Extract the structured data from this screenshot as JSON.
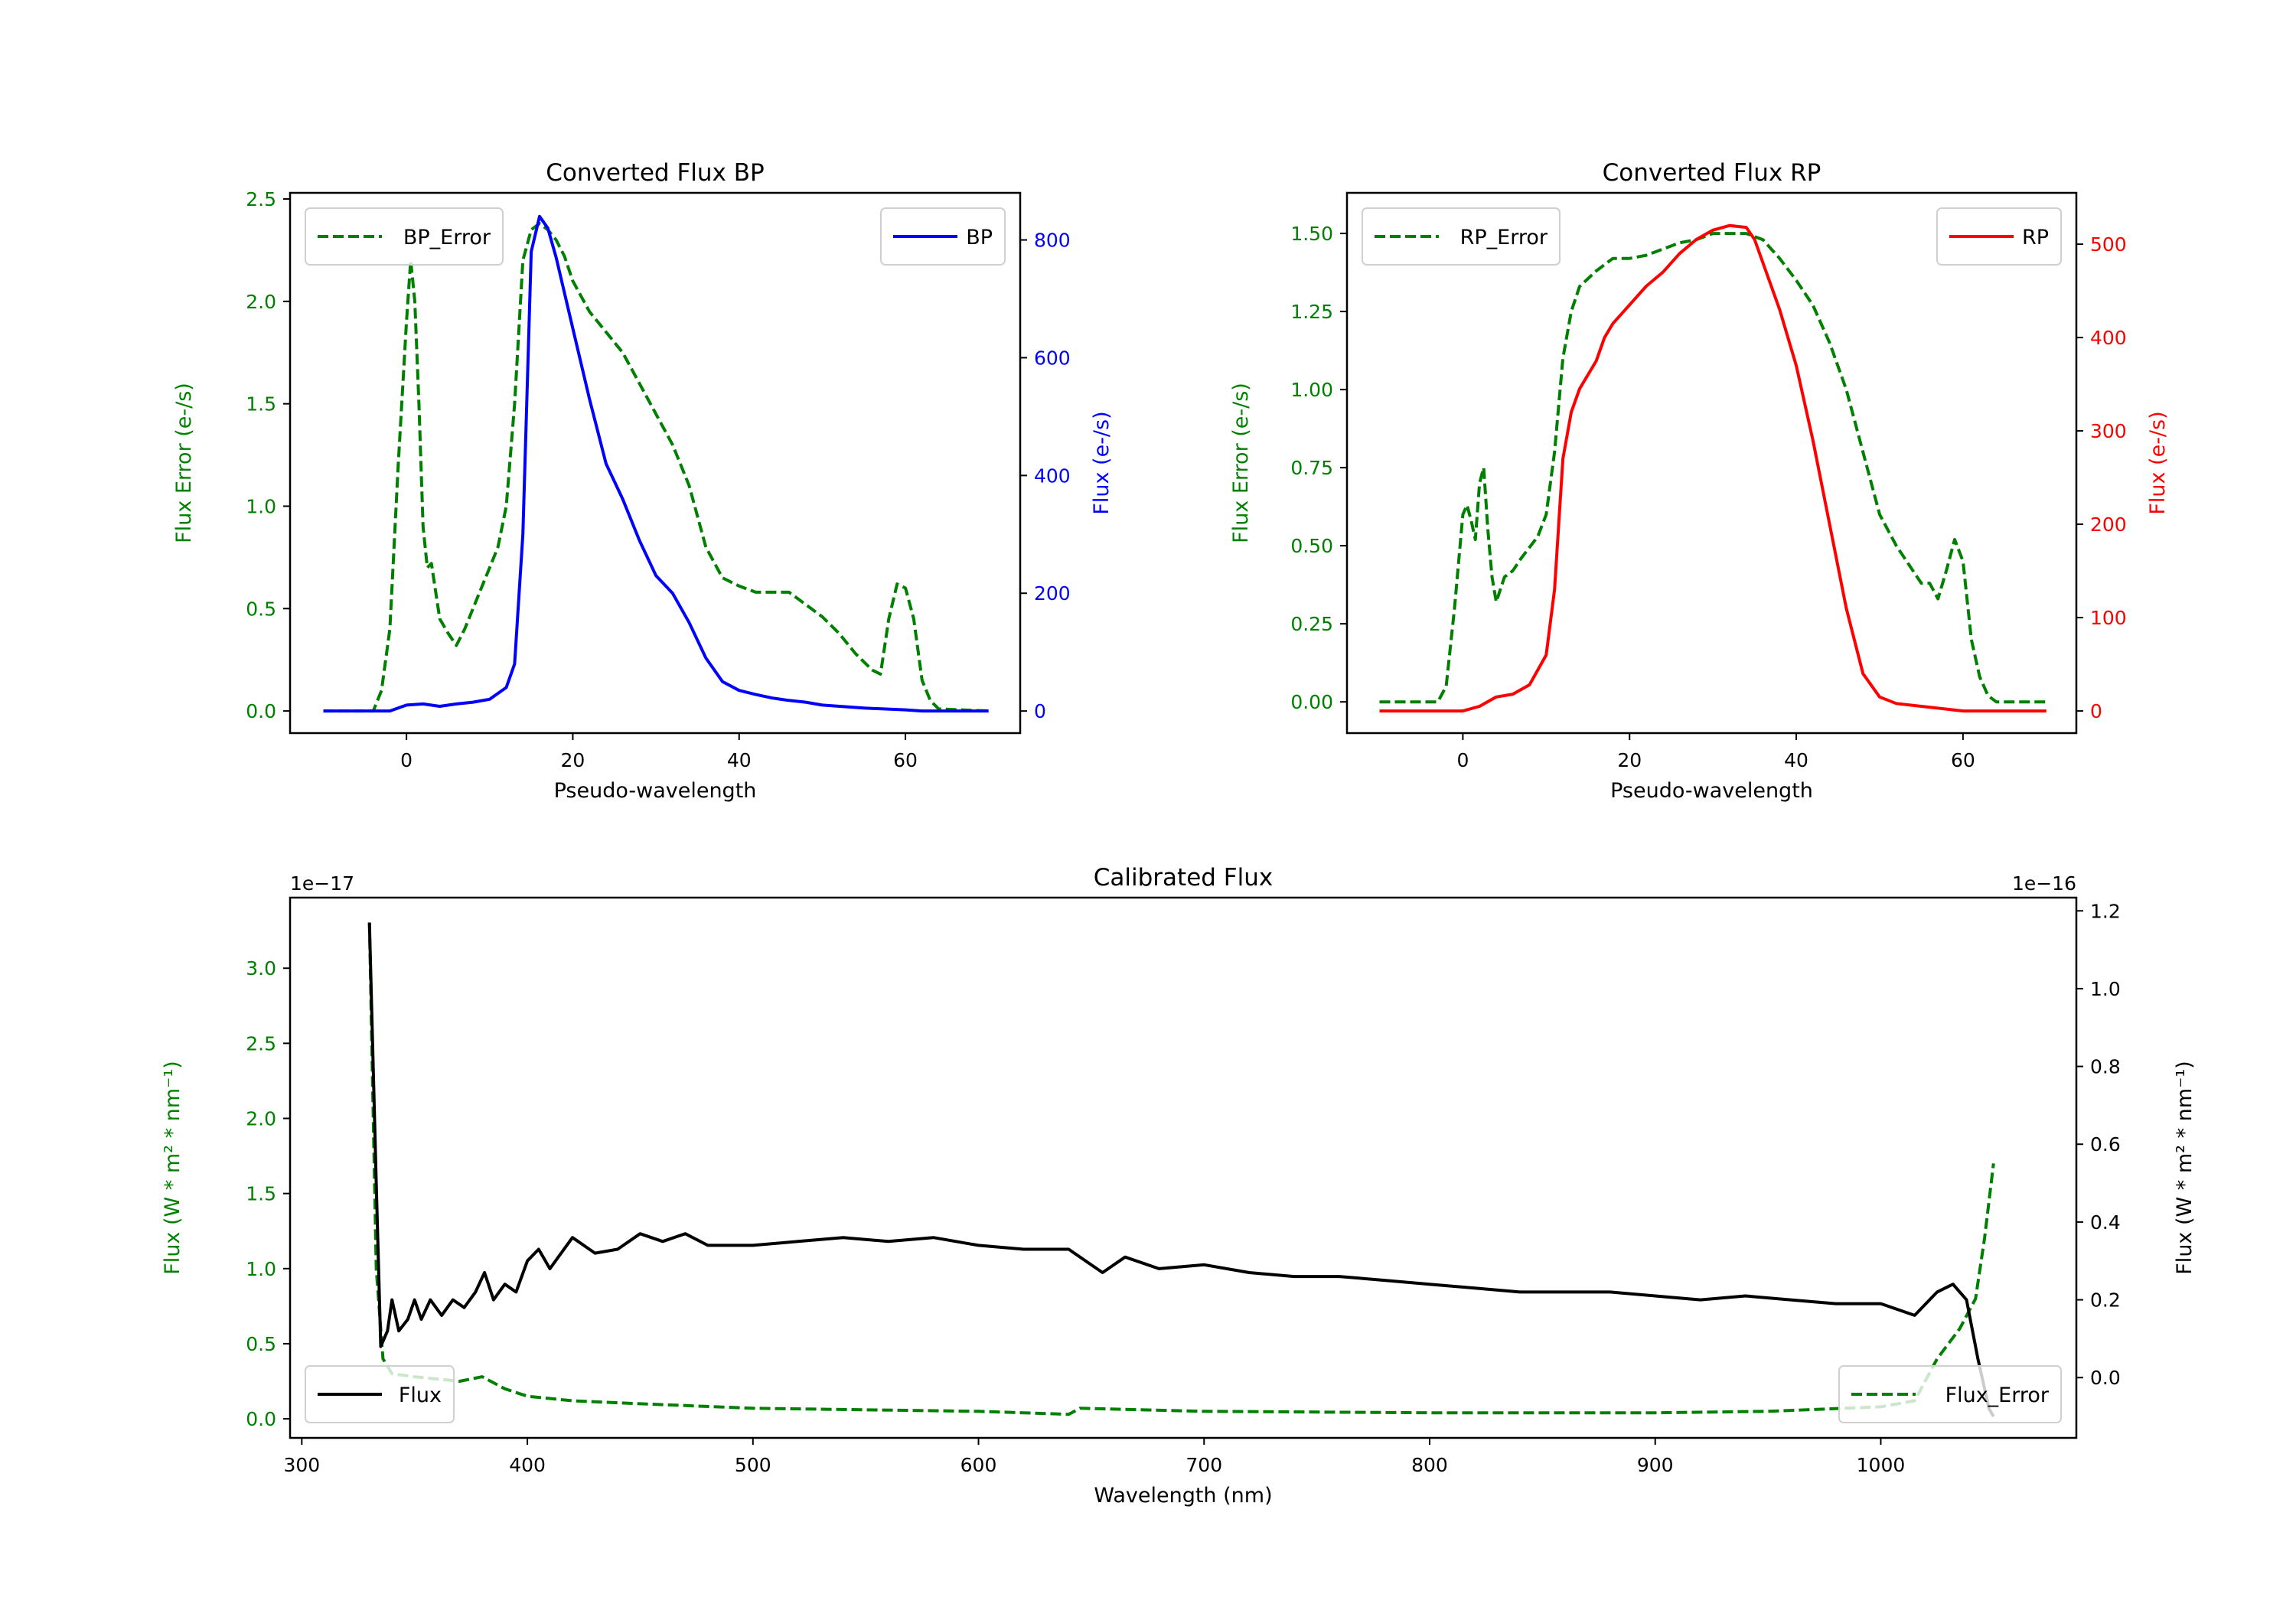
{
  "colors": {
    "error": "#008000",
    "bp": "#0000ff",
    "rp": "#ff0000",
    "flux": "#000000"
  },
  "chart_data": [
    {
      "id": "bp",
      "type": "line",
      "title": "Converted Flux BP",
      "xlabel": "Pseudo-wavelength",
      "ylabel_left": "Flux Error (e-/s)",
      "ylabel_right": "Flux (e-/s)",
      "xlim": [
        -14,
        73.8
      ],
      "ylim_left": [
        -0.108,
        2.53
      ],
      "ylim_right": [
        -37.5,
        880
      ],
      "xticks": [
        0,
        20,
        40,
        60
      ],
      "yticks_left": [
        "0.0",
        "0.5",
        "1.0",
        "1.5",
        "2.0",
        "2.5"
      ],
      "yticks_right": [
        "0",
        "200",
        "400",
        "600",
        "800"
      ],
      "right_color": "#0000ff",
      "series": [
        {
          "name": "BP_Error",
          "axis": "left",
          "style": "dashed",
          "color": "#008000",
          "legend": "upper left",
          "x": [
            -10,
            -4,
            -3,
            -2,
            -1,
            0,
            0.5,
            1,
            1.5,
            2,
            2.5,
            3,
            4,
            5,
            6,
            7,
            8,
            9,
            10,
            11,
            12,
            13,
            14,
            15,
            16,
            17,
            18,
            19,
            20,
            22,
            24,
            26,
            28,
            30,
            32,
            34,
            36,
            38,
            40,
            42,
            44,
            46,
            48,
            50,
            52,
            54,
            56,
            57,
            58,
            59,
            60,
            61,
            62,
            63,
            64,
            70
          ],
          "y": [
            0,
            0,
            0.1,
            0.4,
            1.2,
            1.9,
            2.2,
            2.0,
            1.5,
            0.9,
            0.7,
            0.72,
            0.45,
            0.38,
            0.32,
            0.4,
            0.5,
            0.6,
            0.7,
            0.8,
            1.0,
            1.5,
            2.2,
            2.35,
            2.38,
            2.35,
            2.3,
            2.22,
            2.1,
            1.95,
            1.85,
            1.75,
            1.6,
            1.45,
            1.3,
            1.1,
            0.8,
            0.65,
            0.61,
            0.58,
            0.58,
            0.58,
            0.52,
            0.46,
            0.38,
            0.28,
            0.2,
            0.18,
            0.45,
            0.62,
            0.6,
            0.45,
            0.15,
            0.05,
            0.01,
            0
          ]
        },
        {
          "name": "BP",
          "axis": "right",
          "style": "solid",
          "color": "#0000ff",
          "legend": "upper right",
          "x": [
            -10,
            -2,
            0,
            2,
            4,
            6,
            8,
            10,
            11,
            12,
            13,
            14,
            15,
            16,
            17,
            18,
            20,
            22,
            24,
            26,
            28,
            30,
            32,
            34,
            36,
            38,
            40,
            42,
            44,
            46,
            48,
            50,
            55,
            60,
            62,
            70
          ],
          "y": [
            0,
            0,
            10,
            12,
            8,
            12,
            15,
            20,
            30,
            40,
            80,
            300,
            780,
            840,
            820,
            770,
            650,
            530,
            420,
            360,
            290,
            230,
            200,
            150,
            90,
            50,
            35,
            28,
            22,
            18,
            15,
            10,
            5,
            2,
            0,
            0
          ]
        }
      ]
    },
    {
      "id": "rp",
      "type": "line",
      "title": "Converted Flux RP",
      "xlabel": "Pseudo-wavelength",
      "ylabel_left": "Flux Error (e-/s)",
      "ylabel_right": "Flux (e-/s)",
      "xlim": [
        -13.9,
        73.6
      ],
      "ylim_left": [
        -0.1,
        1.63
      ],
      "ylim_right": [
        -23.7,
        555
      ],
      "xticks": [
        0,
        20,
        40,
        60
      ],
      "yticks_left": [
        "0.00",
        "0.25",
        "0.50",
        "0.75",
        "1.00",
        "1.25",
        "1.50"
      ],
      "yticks_right": [
        "0",
        "100",
        "200",
        "300",
        "400",
        "500"
      ],
      "right_color": "#ff0000",
      "series": [
        {
          "name": "RP_Error",
          "axis": "left",
          "style": "dashed",
          "color": "#008000",
          "legend": "upper left",
          "x": [
            -10,
            -3,
            -2,
            -1,
            0,
            0.5,
            1,
            1.5,
            2,
            2.5,
            3,
            3.5,
            4,
            5,
            6,
            7,
            9,
            10,
            11,
            12,
            13,
            14,
            16,
            18,
            20,
            22,
            24,
            26,
            28,
            30,
            32,
            34,
            36,
            37,
            38,
            40,
            42,
            44,
            46,
            48,
            50,
            52,
            54,
            55,
            56,
            57,
            58,
            59,
            60,
            61,
            62,
            63,
            64,
            70
          ],
          "y": [
            0,
            0,
            0.05,
            0.3,
            0.6,
            0.63,
            0.58,
            0.52,
            0.7,
            0.75,
            0.55,
            0.4,
            0.32,
            0.4,
            0.42,
            0.46,
            0.53,
            0.6,
            0.8,
            1.1,
            1.25,
            1.33,
            1.38,
            1.42,
            1.42,
            1.43,
            1.45,
            1.47,
            1.48,
            1.5,
            1.5,
            1.5,
            1.48,
            1.45,
            1.42,
            1.35,
            1.27,
            1.15,
            1.0,
            0.8,
            0.6,
            0.5,
            0.42,
            0.38,
            0.38,
            0.33,
            0.42,
            0.52,
            0.45,
            0.2,
            0.08,
            0.02,
            0,
            0
          ]
        },
        {
          "name": "RP",
          "axis": "right",
          "style": "solid",
          "color": "#ff0000",
          "legend": "upper right",
          "x": [
            -10,
            0,
            2,
            4,
            6,
            8,
            10,
            11,
            12,
            13,
            14,
            15,
            16,
            17,
            18,
            20,
            22,
            24,
            26,
            28,
            30,
            32,
            34,
            35,
            36,
            38,
            40,
            42,
            44,
            46,
            48,
            50,
            52,
            55,
            58,
            60,
            70
          ],
          "y": [
            0,
            0,
            5,
            15,
            18,
            28,
            60,
            130,
            270,
            320,
            345,
            360,
            375,
            400,
            415,
            435,
            455,
            470,
            490,
            505,
            515,
            520,
            518,
            505,
            480,
            430,
            370,
            290,
            200,
            110,
            40,
            15,
            8,
            5,
            2,
            0,
            0
          ]
        }
      ]
    },
    {
      "id": "cal",
      "type": "line",
      "title": "Calibrated Flux",
      "xlabel": "Wavelength (nm)",
      "ylabel_left": "Flux (W * m² * nm⁻¹)",
      "ylabel_right": "Flux (W * m² * nm⁻¹)",
      "offset_left": "1e−17",
      "offset_right": "1e−16",
      "xlim": [
        294.8,
        1086.7
      ],
      "ylim_left": [
        -0.127,
        3.47
      ],
      "ylim_right": [
        -0.155,
        1.234
      ],
      "xticks": [
        300,
        400,
        500,
        600,
        700,
        800,
        900,
        1000
      ],
      "yticks_left": [
        "0.0",
        "0.5",
        "1.0",
        "1.5",
        "2.0",
        "2.5",
        "3.0"
      ],
      "yticks_right": [
        "0.0",
        "0.2",
        "0.4",
        "0.6",
        "0.8",
        "1.0",
        "1.2"
      ],
      "right_color": "#000000",
      "series": [
        {
          "name": "Flux_Error",
          "axis": "left",
          "style": "dashed",
          "color": "#008000",
          "legend": "lower right",
          "x": [
            330,
            333,
            336,
            340,
            350,
            370,
            380,
            390,
            400,
            420,
            450,
            500,
            550,
            600,
            640,
            645,
            700,
            800,
            900,
            950,
            1000,
            1015,
            1025,
            1035,
            1042,
            1046,
            1050
          ],
          "y": [
            3.3,
            1.0,
            0.4,
            0.3,
            0.28,
            0.25,
            0.28,
            0.2,
            0.15,
            0.12,
            0.1,
            0.07,
            0.06,
            0.05,
            0.03,
            0.07,
            0.05,
            0.04,
            0.04,
            0.05,
            0.08,
            0.12,
            0.4,
            0.6,
            0.8,
            1.2,
            1.7
          ]
        },
        {
          "name": "Flux",
          "axis": "right",
          "style": "solid",
          "color": "#000000",
          "legend": "lower left",
          "x": [
            330,
            333,
            335,
            338,
            340,
            343,
            347,
            350,
            353,
            357,
            362,
            367,
            372,
            377,
            381,
            385,
            390,
            395,
            400,
            405,
            410,
            420,
            430,
            440,
            450,
            460,
            470,
            480,
            500,
            520,
            540,
            560,
            580,
            600,
            620,
            640,
            655,
            665,
            680,
            700,
            720,
            740,
            760,
            780,
            800,
            820,
            840,
            860,
            880,
            900,
            920,
            940,
            960,
            980,
            1000,
            1015,
            1025,
            1032,
            1038,
            1043,
            1048,
            1050
          ],
          "y": [
            1.17,
            0.5,
            0.08,
            0.12,
            0.2,
            0.12,
            0.15,
            0.2,
            0.15,
            0.2,
            0.16,
            0.2,
            0.18,
            0.22,
            0.27,
            0.2,
            0.24,
            0.22,
            0.3,
            0.33,
            0.28,
            0.36,
            0.32,
            0.33,
            0.37,
            0.35,
            0.37,
            0.34,
            0.34,
            0.35,
            0.36,
            0.35,
            0.36,
            0.34,
            0.33,
            0.33,
            0.27,
            0.31,
            0.28,
            0.29,
            0.27,
            0.26,
            0.26,
            0.25,
            0.24,
            0.23,
            0.22,
            0.22,
            0.22,
            0.21,
            0.2,
            0.21,
            0.2,
            0.19,
            0.19,
            0.16,
            0.22,
            0.24,
            0.2,
            0.05,
            -0.08,
            -0.1
          ]
        }
      ]
    }
  ]
}
